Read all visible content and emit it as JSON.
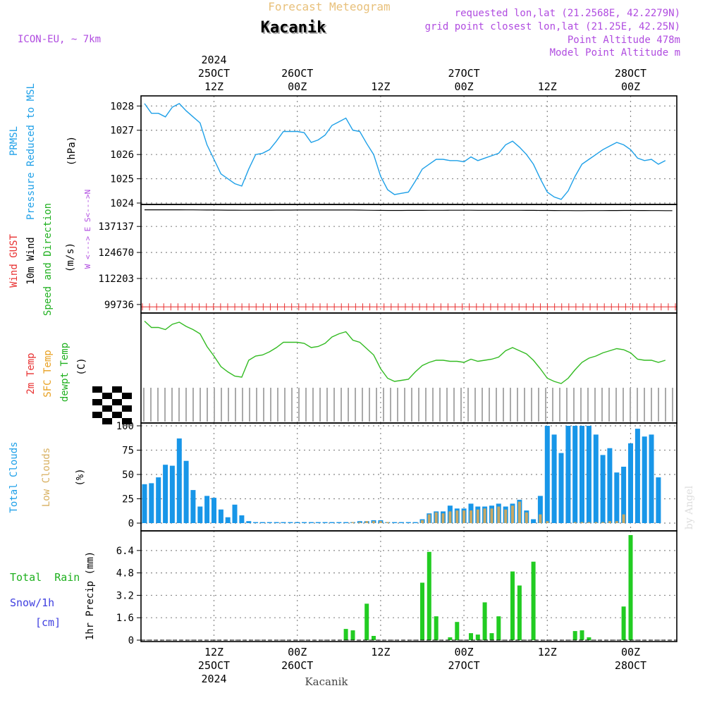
{
  "header": {
    "title": "Forecast Meteogram",
    "location": "Kacanik",
    "model": "ICON-EU, ~ 7km",
    "requested": "requested lon,lat (21.2568E, 42.2279N)",
    "grid_point": "grid point closest lon,lat (21.25E, 42.25N)",
    "point_altitude": "Point Altitude 478m",
    "model_altitude": "Model Point Altitude m"
  },
  "footer": {
    "location": "Kacanik",
    "credit": "by Angel"
  },
  "time_axis": {
    "hours_from_start": "0 = 25 OCT 2024 02Z",
    "top_labels": [
      {
        "h": 10,
        "lines": [
          "2024",
          "25OCT",
          "12Z"
        ]
      },
      {
        "h": 22,
        "lines": [
          "26OCT",
          "00Z"
        ]
      },
      {
        "h": 34,
        "lines": [
          "12Z"
        ]
      },
      {
        "h": 46,
        "lines": [
          "27OCT",
          "00Z"
        ]
      },
      {
        "h": 58,
        "lines": [
          "12Z"
        ]
      },
      {
        "h": 70,
        "lines": [
          "28OCT",
          "00Z"
        ]
      }
    ],
    "bottom_labels": [
      {
        "h": 10,
        "lines": [
          "12Z",
          "25OCT",
          "2024"
        ]
      },
      {
        "h": 22,
        "lines": [
          "00Z",
          "26OCT"
        ]
      },
      {
        "h": 34,
        "lines": [
          "12Z"
        ]
      },
      {
        "h": 46,
        "lines": [
          "00Z",
          "27OCT"
        ]
      },
      {
        "h": 58,
        "lines": [
          "12Z"
        ]
      },
      {
        "h": 70,
        "lines": [
          "00Z",
          "28OCT"
        ]
      }
    ]
  },
  "panels": {
    "pressure": {
      "labels": [
        "PRMSL",
        "Pressure Reduced to MSL"
      ],
      "unit": "(hPa)"
    },
    "wind": {
      "labels": [
        "Wind GUST",
        "10m Wind",
        "Speed and Direction"
      ],
      "unit": "(m/s)",
      "compass": "W <---> E  S<--->N"
    },
    "temperature": {
      "labels": [
        "2m Temp",
        "SFC Temp",
        "dewpt Temp"
      ],
      "unit": "(C)"
    },
    "clouds": {
      "labels": [
        "Total Clouds",
        "Low Clouds"
      ],
      "unit": "(%)"
    },
    "precip": {
      "labels": [
        "Total  Rain",
        "Snow/1h",
        "[cm]"
      ],
      "unit": "1hr Precip (mm)"
    }
  },
  "colors": {
    "pressure_line": "#1ea0e8",
    "wind_line": "#000000",
    "gust_marks": "#e83030",
    "dewpoint_line": "#33bb22",
    "total_clouds": "#1896e8",
    "low_clouds": "#c8a864",
    "precip": "#22cc22",
    "barb_stems": "#aaaaaa",
    "grid": "#888888"
  },
  "chart_data": [
    {
      "type": "line",
      "title": "PRMSL Pressure Reduced to MSL",
      "ylabel": "(hPa)",
      "ylim": [
        1024,
        1028.3
      ],
      "yticks": [
        1024,
        1025,
        1026,
        1027,
        1028
      ],
      "grid": true,
      "x_start_h": 0,
      "x_step_h": 1,
      "values": [
        1028.1,
        1027.7,
        1027.7,
        1027.55,
        1027.95,
        1028.1,
        1027.8,
        1027.55,
        1027.3,
        1026.4,
        1025.8,
        1025.2,
        1025.0,
        1024.8,
        1024.7,
        1025.4,
        1026.0,
        1026.05,
        1026.2,
        1026.55,
        1026.95,
        1026.95,
        1026.95,
        1026.9,
        1026.5,
        1026.6,
        1026.8,
        1027.2,
        1027.35,
        1027.5,
        1027.0,
        1026.95,
        1026.45,
        1026.0,
        1025.1,
        1024.55,
        1024.35,
        1024.4,
        1024.45,
        1024.9,
        1025.4,
        1025.6,
        1025.8,
        1025.8,
        1025.75,
        1025.75,
        1025.7,
        1025.9,
        1025.75,
        1025.85,
        1025.95,
        1026.05,
        1026.4,
        1026.55,
        1026.3,
        1026.0,
        1025.6,
        1025.0,
        1024.45,
        1024.25,
        1024.15,
        1024.5,
        1025.1,
        1025.6,
        1025.8,
        1026.0,
        1026.2,
        1026.35,
        1026.5,
        1026.4,
        1026.2,
        1025.85,
        1025.75,
        1025.8,
        1025.6,
        1025.75
      ]
    },
    {
      "type": "line",
      "title": "Wind GUST 10m Wind Speed and Direction",
      "ylabel": "(m/s)",
      "ylim": [
        97000,
        147000
      ],
      "yticks": [
        99736,
        112203,
        124670,
        137137
      ],
      "grid": true,
      "series": [
        {
          "values_knots": [
            [
              0,
              145100
            ],
            [
              5,
              145100
            ],
            [
              10,
              145000
            ],
            [
              14,
              144900
            ],
            [
              22,
              145000
            ],
            [
              30,
              145000
            ],
            [
              35,
              144800
            ],
            [
              45,
              144900
            ],
            [
              55,
              144850
            ],
            [
              58,
              144800
            ],
            [
              62,
              144700
            ],
            [
              70,
              144800
            ],
            [
              75,
              144700
            ]
          ]
        }
      ],
      "gust_level": 98600,
      "gust_marks_count": 76
    },
    {
      "type": "line",
      "title": "2m Temp SFC Temp dewpt Temp",
      "ylabel": "(C)",
      "ylim": [
        0,
        100
      ],
      "series": [
        {
          "values_knots": [
            [
              0,
              95
            ],
            [
              1,
              89
            ],
            [
              2,
              89
            ],
            [
              3,
              87
            ],
            [
              4,
              92
            ],
            [
              5,
              94
            ],
            [
              6,
              90
            ],
            [
              7,
              87
            ],
            [
              8,
              83
            ],
            [
              9,
              71
            ],
            [
              10,
              62
            ],
            [
              11,
              52
            ],
            [
              12,
              47
            ],
            [
              13,
              43
            ],
            [
              14,
              42
            ],
            [
              15,
              58
            ],
            [
              16,
              62
            ],
            [
              17,
              63
            ],
            [
              18,
              66
            ],
            [
              19,
              70
            ],
            [
              20,
              75
            ],
            [
              21,
              75
            ],
            [
              22,
              75
            ],
            [
              23,
              74
            ],
            [
              24,
              70
            ],
            [
              25,
              71
            ],
            [
              26,
              74
            ],
            [
              27,
              80
            ],
            [
              28,
              83
            ],
            [
              29,
              85
            ],
            [
              30,
              77
            ],
            [
              31,
              75
            ],
            [
              32,
              69
            ],
            [
              33,
              63
            ],
            [
              34,
              50
            ],
            [
              35,
              41
            ],
            [
              36,
              38
            ],
            [
              37,
              39
            ],
            [
              38,
              40
            ],
            [
              39,
              47
            ],
            [
              40,
              53
            ],
            [
              41,
              56
            ],
            [
              42,
              58
            ],
            [
              43,
              58
            ],
            [
              44,
              57
            ],
            [
              45,
              57
            ],
            [
              46,
              56
            ],
            [
              47,
              59
            ],
            [
              48,
              57
            ],
            [
              49,
              58
            ],
            [
              50,
              59
            ],
            [
              51,
              61
            ],
            [
              52,
              67
            ],
            [
              53,
              70
            ],
            [
              54,
              67
            ],
            [
              55,
              64
            ],
            [
              56,
              58
            ],
            [
              57,
              50
            ],
            [
              58,
              41
            ],
            [
              59,
              38
            ],
            [
              60,
              36
            ],
            [
              61,
              41
            ],
            [
              62,
              49
            ],
            [
              63,
              56
            ],
            [
              64,
              60
            ],
            [
              65,
              62
            ],
            [
              66,
              65
            ],
            [
              67,
              67
            ],
            [
              68,
              69
            ],
            [
              69,
              68
            ],
            [
              70,
              65
            ],
            [
              71,
              59
            ],
            [
              72,
              58
            ],
            [
              73,
              58
            ],
            [
              74,
              56
            ],
            [
              75,
              58
            ]
          ]
        }
      ]
    },
    {
      "type": "bar",
      "title": "Total Clouds Low Clouds",
      "ylabel": "(%)",
      "ylim": [
        0,
        100
      ],
      "yticks": [
        0,
        25,
        50,
        75,
        100
      ],
      "grid": true,
      "series": [
        {
          "values": [
            40,
            41,
            47,
            60,
            59,
            87,
            64,
            34,
            17,
            28,
            26,
            14,
            6,
            19,
            8,
            2,
            1,
            1,
            1,
            1,
            1,
            1,
            1,
            1,
            1,
            1,
            1,
            1,
            1,
            1,
            1,
            2,
            2,
            3,
            3,
            1,
            1,
            1,
            1,
            1,
            4,
            10,
            12,
            12,
            18,
            15,
            15,
            20,
            17,
            17,
            18,
            20,
            17,
            20,
            24,
            13,
            4,
            28,
            100,
            91,
            72,
            100,
            100,
            100,
            100,
            91,
            70,
            77,
            52,
            58,
            82,
            97,
            89,
            91,
            47
          ]
        },
        {
          "values": [
            0,
            0,
            0,
            0,
            0,
            0,
            0,
            0,
            0,
            0,
            0,
            0,
            0,
            0,
            0,
            0,
            0,
            0,
            0,
            0,
            0,
            0,
            0,
            0,
            0,
            0,
            0,
            0,
            0,
            0,
            1,
            1,
            2,
            2,
            2,
            1,
            0,
            0,
            0,
            0,
            3,
            9,
            11,
            10,
            12,
            13,
            13,
            13,
            14,
            15,
            15,
            17,
            14,
            18,
            22,
            11,
            0,
            9,
            2,
            0,
            0,
            0,
            1,
            1,
            1,
            1,
            1,
            2,
            2,
            9,
            0,
            0,
            0,
            0,
            0
          ]
        }
      ]
    },
    {
      "type": "bar",
      "title": "Total Rain Snow/1h [cm]",
      "ylabel": "1hr Precip (mm)",
      "ylim": [
        0,
        7.6
      ],
      "yticks": [
        0,
        1.6,
        3.2,
        4.8,
        6.4
      ],
      "grid": true,
      "series": [
        {
          "values": [
            0,
            0,
            0,
            0,
            0,
            0,
            0,
            0,
            0,
            0,
            0,
            0,
            0,
            0,
            0,
            0,
            0,
            0,
            0,
            0,
            0,
            0,
            0,
            0,
            0,
            0,
            0,
            0,
            0,
            0.8,
            0.7,
            0,
            2.6,
            0.3,
            0,
            0,
            0,
            0,
            0,
            0,
            4.1,
            6.3,
            1.7,
            0,
            0.2,
            1.3,
            0,
            0.5,
            0.4,
            2.7,
            0.5,
            1.7,
            0,
            4.9,
            3.9,
            0,
            5.6,
            0,
            0,
            0,
            0,
            0,
            0.65,
            0.7,
            0.2,
            0,
            0,
            0,
            0,
            2.4,
            7.5,
            0,
            0,
            0,
            0
          ]
        }
      ]
    }
  ]
}
